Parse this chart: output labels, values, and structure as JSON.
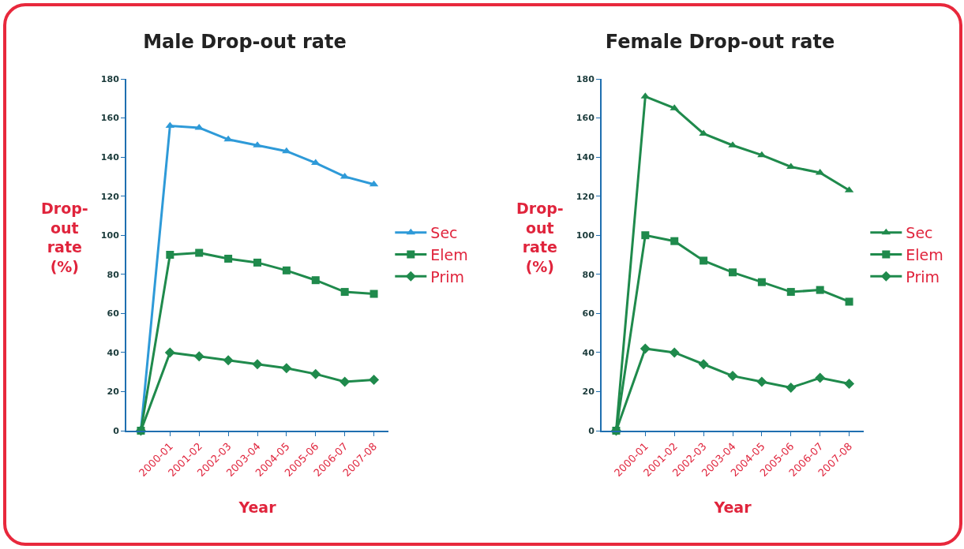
{
  "chart_data": [
    {
      "type": "line",
      "title": "Male Drop-out rate",
      "xlabel": "Year",
      "ylabel": "Drop-out rate (%)",
      "categories": [
        null,
        "2000-01",
        "2001-02",
        "2002-03",
        "2003-04",
        "2004-05",
        "2005-06",
        "2006-07",
        "2007-08"
      ],
      "ylim": [
        0,
        180
      ],
      "yticks": [
        0,
        20,
        40,
        60,
        80,
        100,
        120,
        140,
        160,
        180
      ],
      "grid": false,
      "legend": "right",
      "series": [
        {
          "name": "Sec",
          "color": "#2e9ad8",
          "marker": "triangle",
          "values": [
            0,
            156,
            155,
            149,
            146,
            143,
            137,
            130,
            126
          ]
        },
        {
          "name": "Elem",
          "color": "#1f8a4c",
          "marker": "square",
          "values": [
            0,
            90,
            91,
            88,
            86,
            82,
            77,
            71,
            70
          ]
        },
        {
          "name": "Prim",
          "color": "#1f8a4c",
          "marker": "diamond",
          "values": [
            0,
            40,
            38,
            36,
            34,
            32,
            29,
            25,
            26
          ]
        }
      ]
    },
    {
      "type": "line",
      "title": "Female Drop-out rate",
      "xlabel": "Year",
      "ylabel": "Drop-out rate (%)",
      "categories": [
        null,
        "2000-01",
        "2001-02",
        "2002-03",
        "2003-04",
        "2004-05",
        "2005-06",
        "2006-07",
        "2007-08"
      ],
      "ylim": [
        0,
        180
      ],
      "yticks": [
        0,
        20,
        40,
        60,
        80,
        100,
        120,
        140,
        160,
        180
      ],
      "grid": false,
      "legend": "right",
      "series": [
        {
          "name": "Sec",
          "color": "#1f8a4c",
          "marker": "triangle",
          "values": [
            0,
            171,
            165,
            152,
            146,
            141,
            135,
            132,
            123
          ]
        },
        {
          "name": "Elem",
          "color": "#1f8a4c",
          "marker": "square",
          "values": [
            0,
            100,
            97,
            87,
            81,
            76,
            71,
            72,
            66
          ]
        },
        {
          "name": "Prim",
          "color": "#1f8a4c",
          "marker": "diamond",
          "values": [
            0,
            42,
            40,
            34,
            28,
            25,
            22,
            27,
            24
          ]
        }
      ]
    }
  ]
}
